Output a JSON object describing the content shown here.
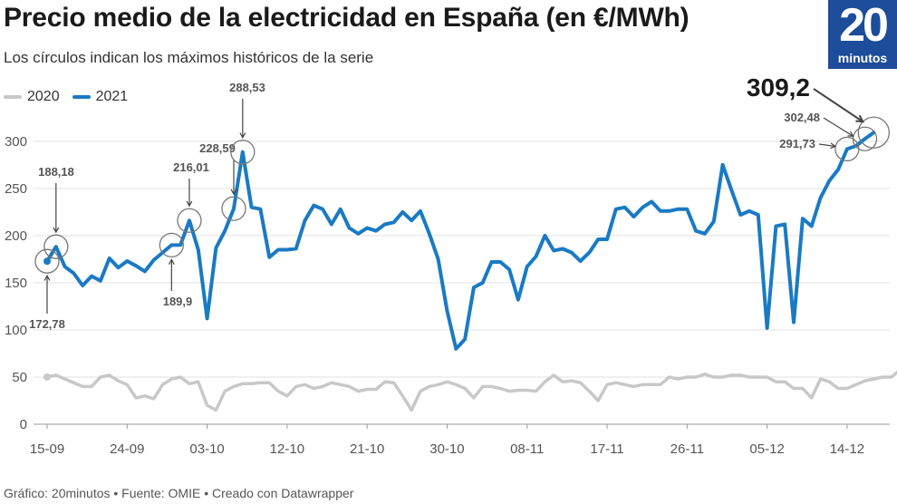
{
  "header": {
    "title": "Precio medio de la electricidad en España (en €/MWh)",
    "subtitle": "Los círculos indican los máximos históricos de la serie"
  },
  "logo": {
    "number": "20",
    "word": "minutos"
  },
  "footer": {
    "text": "Gráfico: 20minutos • Fuente: OMIE • Creado con Datawrapper"
  },
  "colors": {
    "s2020": "#c8c8c8",
    "s2021": "#1a7ac4",
    "logo_bg": "#1c4c9a"
  },
  "chart_data": {
    "type": "line",
    "title": "Precio medio de la electricidad en España (en €/MWh)",
    "subtitle": "Los círculos indican los máximos históricos de la serie",
    "xlabel": "",
    "ylabel": "",
    "x_start": "15-09",
    "x_end": "17-12",
    "x_ticks": [
      "15-09",
      "24-09",
      "03-10",
      "12-10",
      "21-10",
      "30-10",
      "08-11",
      "17-11",
      "26-11",
      "05-12",
      "14-12"
    ],
    "ylim": [
      0,
      320
    ],
    "y_ticks": [
      0,
      50,
      100,
      150,
      200,
      250,
      300
    ],
    "grid": true,
    "legend_position": "top-left",
    "series": [
      {
        "name": "2020",
        "values": [
          50,
          52,
          48,
          44,
          40,
          40,
          50,
          52,
          46,
          42,
          28,
          30,
          27,
          42,
          48,
          50,
          43,
          45,
          20,
          15,
          35,
          40,
          43,
          43,
          44,
          44,
          35,
          30,
          40,
          42,
          38,
          40,
          44,
          42,
          40,
          35,
          37,
          37,
          45,
          44,
          30,
          15,
          35,
          40,
          42,
          45,
          42,
          38,
          28,
          40,
          40,
          38,
          35,
          36,
          36,
          35,
          45,
          52,
          45,
          46,
          44,
          35,
          25,
          42,
          44,
          42,
          40,
          42,
          42,
          42,
          50,
          48,
          50,
          50,
          53,
          50,
          50,
          52,
          52,
          50,
          50,
          50,
          45,
          45,
          38,
          38,
          28,
          48,
          45,
          38,
          38,
          42,
          46,
          48,
          50,
          50,
          58
        ]
      },
      {
        "name": "2021",
        "values": [
          172.78,
          188.18,
          167,
          160,
          147,
          157,
          152,
          176,
          166,
          173,
          168,
          162,
          174,
          182,
          189.9,
          190,
          216.01,
          185,
          112,
          187,
          205,
          228.59,
          288.53,
          230,
          228,
          177,
          185,
          185,
          186,
          216,
          232,
          228,
          212,
          228,
          208,
          202,
          208,
          205,
          212,
          214,
          225,
          216,
          226,
          202,
          175,
          120,
          80,
          90,
          145,
          150,
          172,
          172,
          164,
          132,
          167,
          178,
          200,
          184,
          186,
          182,
          173,
          182,
          196,
          196,
          228,
          230,
          220,
          230,
          236,
          226,
          226,
          228,
          228,
          205,
          202,
          215,
          275,
          248,
          222,
          226,
          222,
          102,
          210,
          212,
          108,
          218,
          210,
          240,
          258,
          270,
          291.73,
          295,
          302.48,
          309.2
        ]
      }
    ],
    "annotations": [
      {
        "label": "172,78",
        "series": "2021",
        "index": 0
      },
      {
        "label": "188,18",
        "series": "2021",
        "index": 1
      },
      {
        "label": "189,9",
        "series": "2021",
        "index": 14
      },
      {
        "label": "216,01",
        "series": "2021",
        "index": 16
      },
      {
        "label": "228,59",
        "series": "2021",
        "index": 21
      },
      {
        "label": "288,53",
        "series": "2021",
        "index": 22
      },
      {
        "label": "291,73",
        "series": "2021",
        "index": 90
      },
      {
        "label": "302,48",
        "series": "2021",
        "index": 92
      },
      {
        "label": "309,2",
        "series": "2021",
        "index": 93
      }
    ]
  }
}
